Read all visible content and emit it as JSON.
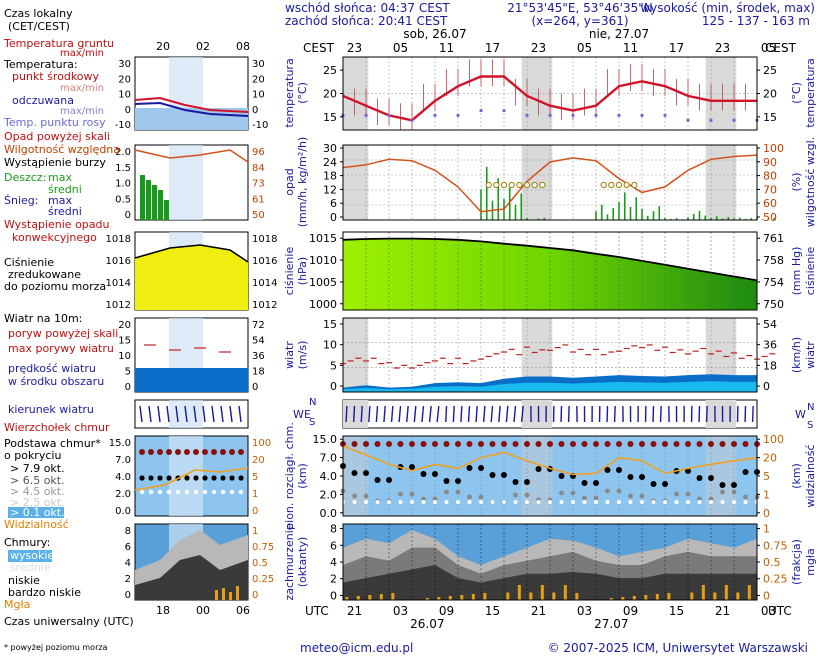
{
  "header": {
    "sunrise": "wschód słońca: 04:37 CEST",
    "sunset": "zachód słońca: 20:41 CEST",
    "coords": "21°53'45\"E, 53°46'35\"N",
    "grid": "(x=264, y=361)",
    "alt_title": "wysokość (min, środek, max)",
    "alt_values": "125 - 137 - 163 m"
  },
  "footer": {
    "email": "meteo@icm.edu.pl",
    "copyright": "© 2007-2025 ICM, Uniwersytet Warszawski",
    "footnote": "* powyżej poziomu morza"
  },
  "legend": {
    "time_local": "Czas lokalny",
    "time_local2": "(CET/CEST)",
    "local_ticks": [
      "20",
      "02",
      "08"
    ],
    "utc_ticks": [
      "18",
      "00",
      "06"
    ],
    "utc_label": "Czas uniwersalny (UTC)",
    "temp": {
      "ground": "Temperatura gruntu",
      "ground_mm": "max/min",
      "temperature": "Temperatura:",
      "midpoint": "punkt środkowy",
      "minmax": "max/min",
      "felt": "odczuwana",
      "felt_mm": "max/min",
      "dew": "Temp. punktu rosy",
      "yl": [
        "30",
        "20",
        "10",
        "0",
        "-10"
      ],
      "yr": [
        "30",
        "20",
        "10",
        "0",
        "-10"
      ]
    },
    "precip": {
      "over_scale": "Opad powyżej skali",
      "humidity": "Wilgotność względna",
      "storm": "Wystąpienie burzy",
      "rain": "Deszcz:",
      "max": "max",
      "mean": "średni",
      "snow": "Śnieg:",
      "snow_max": "max",
      "snow_mean": "średni",
      "occurrence": "Wystąpienie opadu",
      "convective": "konwekcyjnego",
      "yl": [
        "2.0",
        "1.5",
        "1.0",
        "0.5",
        "0"
      ],
      "yr": [
        "96",
        "84",
        "73",
        "61",
        "50"
      ]
    },
    "pressure": {
      "l1": "Ciśnienie",
      "l2": "zredukowane",
      "l3": "do poziomu morza",
      "yl": [
        "1018",
        "1016",
        "1014",
        "1012"
      ],
      "yr": [
        "1018",
        "1016",
        "1014",
        "1012"
      ]
    },
    "wind": {
      "title": "Wiatr na 10m:",
      "gust_over": "poryw powyżej skali",
      "gust_max": "max porywy wiatru",
      "speed": "prędkość wiatru",
      "speed2": "w środku obszaru",
      "yl": [
        "20",
        "15",
        "10",
        "5",
        "0"
      ],
      "yr": [
        "72",
        "54",
        "36",
        "18",
        "0"
      ]
    },
    "direction": {
      "label": "kierunek wiatru"
    },
    "clouds": {
      "cumulus": "Wierzchołek chmur",
      "base": "Podstawa chmur*",
      "coverage": "o pokryciu",
      "o79": "> 7.9 okt.",
      "o65": "> 6.5 okt.",
      "o45": "> 4.5 okt.",
      "o25": "> 2.5 okt.",
      "o01": "> 0.1 okt.",
      "visibility": "Widzialność",
      "yl": [
        "15.0",
        "7.0",
        "4.0",
        "2.0",
        "0.0"
      ],
      "yr": [
        "100",
        "20",
        "5",
        "1",
        "0"
      ]
    },
    "cloudcover": {
      "title": "Chmury:",
      "high": "wysokie",
      "mid": "średnie",
      "low": "niskie",
      "vlow": "bardzo niskie",
      "fog": "Mgła",
      "yl": [
        "8",
        "6",
        "4",
        "2",
        "0"
      ],
      "yr": [
        "1",
        "0.75",
        "0.5",
        "0.25",
        "0"
      ]
    }
  },
  "main": {
    "cest": "CEST",
    "utc": "UTC",
    "local_ticks": [
      "23",
      "05",
      "11",
      "17",
      "23",
      "05",
      "11",
      "17",
      "23",
      "05"
    ],
    "utc_ticks": [
      "21",
      "03",
      "09",
      "15",
      "21",
      "03",
      "09",
      "15",
      "21",
      "03"
    ],
    "day1_top": "sob, 26.07",
    "day2_top": "nie, 27.07",
    "day1_bottom": "26.07",
    "day2_bottom": "27.07",
    "labels": {
      "temp": "temperatura",
      "temp_unit": "(°C)",
      "precip": "opad",
      "precip_unit": "(mm/h, kg/m²/h)",
      "humidity": "wilgotność wzgl.",
      "humidity_unit": "(%)",
      "pressure": "ciśnienie",
      "pressure_unit": "(hPa)",
      "pressure_unit2": "(mm Hg)",
      "wind": "wiatr",
      "wind_unit": "(m/s)",
      "wind_unit2": "(km/h)",
      "cloud": "pion. rozciągł. chm.",
      "cloud_unit": "(km)",
      "vis": "widzialność",
      "vis_unit": "(km)",
      "cover": "zachmurzenie",
      "cover_unit": "(oktanty)",
      "fog": "(frakcja)",
      "fog2": "mgła"
    },
    "compass": {
      "w": "W",
      "e": "E",
      "n": "N",
      "s": "S"
    },
    "temp_axis": {
      "left": [
        "25",
        "20",
        "15"
      ],
      "right": [
        "25",
        "20",
        "15"
      ]
    },
    "precip_axis": {
      "left": [
        "30",
        "24",
        "18",
        "12",
        "6",
        "0"
      ],
      "right": [
        "100",
        "90",
        "80",
        "70",
        "60",
        "50"
      ]
    },
    "pressure_axis": {
      "left": [
        "1015",
        "1010",
        "1005",
        "1000"
      ],
      "right": [
        "761",
        "758",
        "754",
        "750"
      ]
    },
    "wind_axis": {
      "left": [
        "15",
        "10",
        "5",
        "0"
      ],
      "right": [
        "54",
        "36",
        "18",
        "0"
      ]
    },
    "cloud_axis": {
      "left": [
        "15.0",
        "7.0",
        "4.0",
        "2.0",
        "0.0"
      ],
      "right": [
        "100",
        "20",
        "5",
        "1",
        "0"
      ]
    },
    "cover_axis": {
      "left": [
        "8",
        "6",
        "4",
        "2",
        "0"
      ],
      "right": [
        "1",
        "0.75",
        "0.5",
        "0.25",
        "0"
      ]
    }
  },
  "colors": {
    "night": "#d9d9d9",
    "temp": "#d2122a",
    "humidity": "#d2511a",
    "rain": "#1a9a1a",
    "pressure_fill": "#6fd600",
    "wind_fill": "#0a6ec8",
    "wind_light": "#19b8ef",
    "cover_dark": "#3a3a3a",
    "vis": "#f0a020",
    "fog": "#e8a010",
    "sky": "#8ec5ee"
  },
  "chart_data": [
    {
      "type": "line",
      "title": "temperatura",
      "ylabel": "(°C)",
      "ylim": [
        13,
        28
      ],
      "x_hours_utc": [
        0,
        3,
        6,
        9,
        12,
        15,
        18,
        21,
        24,
        27,
        30,
        33,
        36,
        39,
        42,
        45,
        48,
        51,
        54
      ],
      "series": [
        {
          "name": "temperatura",
          "values": [
            20,
            18,
            16,
            15,
            19,
            22,
            24,
            24,
            20,
            18,
            17,
            18,
            22,
            23,
            22,
            20,
            19,
            19,
            19
          ]
        },
        {
          "name": "temp. punktu rosy",
          "values": [
            16,
            16,
            16,
            15,
            16,
            16,
            17,
            17,
            16,
            16,
            16,
            16,
            16,
            16,
            16,
            15,
            15,
            15,
            15
          ]
        }
      ]
    },
    {
      "type": "bar",
      "title": "opad",
      "ylabel": "(mm/h, kg/m²/h)",
      "ylim": [
        0,
        30
      ],
      "humidity_pct": [
        88,
        90,
        94,
        93,
        86,
        74,
        56,
        58,
        78,
        92,
        95,
        93,
        80,
        70,
        74,
        86,
        94,
        96,
        97
      ],
      "rain_max": [
        0,
        0,
        0,
        0,
        0,
        0,
        28,
        14,
        1,
        0,
        0,
        8,
        12,
        6,
        1,
        4,
        2,
        1,
        1
      ]
    },
    {
      "type": "area",
      "title": "ciśnienie",
      "ylabel": "(hPa)",
      "ylim": [
        996,
        1016
      ],
      "values": [
        1014,
        1014.2,
        1014.3,
        1014.3,
        1014.2,
        1014,
        1013.6,
        1013,
        1012.5,
        1011.9,
        1011.3,
        1010.4,
        1009.6,
        1008.6,
        1007.6,
        1006.6,
        1005.6,
        1004.6,
        1003.6
      ]
    },
    {
      "type": "area",
      "title": "wiatr",
      "ylabel": "(m/s)",
      "ylim": [
        0,
        15
      ],
      "speed": [
        1,
        1.5,
        1,
        1.2,
        2,
        2.2,
        2,
        3,
        3.5,
        3.5,
        3.2,
        3.5,
        3.8,
        3.6,
        3.5,
        3.8,
        4,
        3.8,
        3.8
      ],
      "gust_max": [
        7,
        7,
        6,
        6,
        7,
        7,
        8,
        9,
        9.5,
        10,
        9,
        9,
        9.8,
        10,
        9.5,
        9.2,
        8.6,
        8.2,
        8
      ]
    },
    {
      "type": "scatter",
      "title": "widzialność",
      "ylabel": "(km)",
      "visibility": [
        13,
        9,
        6,
        4.5,
        6,
        5,
        8,
        10,
        7,
        5,
        3.8,
        4,
        8,
        7,
        4,
        5,
        6,
        7,
        8
      ]
    },
    {
      "type": "area",
      "title": "zachmurzenie",
      "ylabel": "(oktanty)",
      "ylim": [
        0,
        8
      ],
      "high": [
        6,
        7,
        6.5,
        8,
        7,
        5,
        4,
        5,
        6,
        7,
        6.8,
        6,
        5,
        5.5,
        6,
        7,
        6.5,
        6,
        7
      ],
      "mid": [
        4,
        5,
        4.5,
        6,
        6,
        4,
        3,
        4,
        4.5,
        5,
        5.5,
        4.5,
        4,
        4,
        5,
        5.5,
        5,
        5,
        5
      ],
      "low": [
        2,
        2.5,
        3,
        3.5,
        4,
        2.5,
        2,
        2.5,
        3,
        3,
        3.2,
        3,
        2.5,
        2.5,
        3,
        3,
        3,
        3,
        3
      ]
    }
  ]
}
